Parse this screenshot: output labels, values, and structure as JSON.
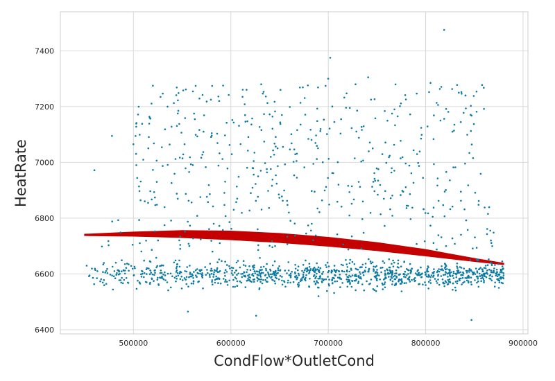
{
  "chart_data": {
    "type": "scatter",
    "title": "",
    "xlabel": "CondFlow*OutletCond",
    "ylabel": "HeatRate",
    "xlim": [
      425000,
      905000
    ],
    "ylim": [
      6385,
      7540
    ],
    "xticks": [
      500000,
      600000,
      700000,
      800000,
      900000
    ],
    "yticks": [
      6400,
      6600,
      6800,
      7000,
      7200,
      7400
    ],
    "grid": true,
    "legend": "none",
    "colors": {
      "points": "#0e7ba3",
      "fit": "#c40000",
      "grid": "#d9d9d9",
      "spine": "#cccccc"
    },
    "scatter_sample": {
      "description_of_clusters": "dense band around 6520-6680 and sparse band 6800-7300",
      "x": [
        455000,
        460000,
        463000,
        478000,
        482000,
        500000,
        503000,
        520000,
        524000,
        526000,
        532000,
        535000,
        548000,
        556000,
        572000,
        588000,
        603000,
        612000,
        626000,
        642000,
        651000,
        670000,
        683000,
        690000,
        700000,
        702000,
        704000,
        718000,
        728000,
        741000,
        744000,
        756000,
        768000,
        782000,
        800000,
        805000,
        819000,
        821000,
        834000,
        847000,
        853000,
        867000,
        873000,
        880000
      ],
      "y": [
        6595,
        6972,
        6610,
        7095,
        6640,
        7065,
        6990,
        7275,
        6930,
        6560,
        6775,
        7200,
        6690,
        6465,
        7110,
        7220,
        6830,
        7235,
        6450,
        6590,
        7260,
        6560,
        6780,
        6520,
        7300,
        7375,
        6610,
        6650,
        7280,
        7305,
        6580,
        6545,
        7190,
        6600,
        6560,
        7285,
        7475,
        6700,
        7250,
        6435,
        6605,
        6720,
        6600,
        6595
      ]
    },
    "fit_band": {
      "x": [
        450000,
        500000,
        550000,
        600000,
        650000,
        700000,
        750000,
        800000,
        850000,
        880000
      ],
      "upper": [
        6742,
        6750,
        6755,
        6753,
        6745,
        6731,
        6712,
        6687,
        6655,
        6638
      ],
      "lower": [
        6738,
        6736,
        6731,
        6723,
        6713,
        6700,
        6684,
        6665,
        6645,
        6634
      ]
    }
  }
}
